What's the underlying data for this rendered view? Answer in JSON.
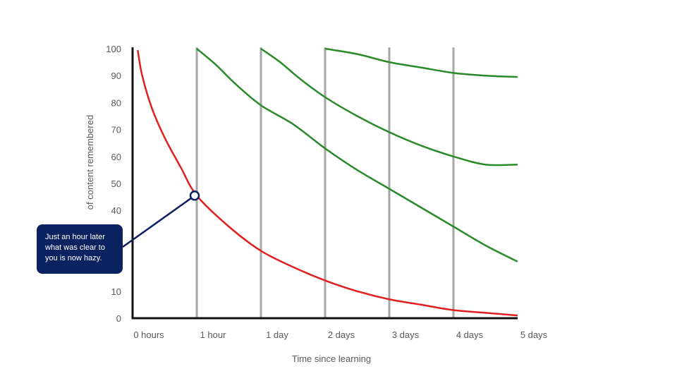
{
  "chart_data": {
    "type": "line",
    "xlabel": "Time since learning",
    "ylabel": "of content remembered",
    "ylim": [
      0,
      100
    ],
    "y_ticks": [
      "0",
      "10",
      "40",
      "50",
      "60",
      "70",
      "80",
      "90",
      "100"
    ],
    "x_ticks": [
      "0 hours",
      "1 hour",
      "1 day",
      "2 days",
      "3 days",
      "4 days",
      "5 days"
    ],
    "review_lines_at": [
      1,
      2,
      3,
      4,
      5
    ],
    "series": [
      {
        "color": "#e02020",
        "x": [
          0.08,
          0.15,
          0.3,
          0.5,
          0.75,
          1,
          1.5,
          2,
          2.5,
          3,
          3.5,
          4,
          4.5,
          5,
          5.5,
          6
        ],
        "y": [
          99.5,
          90,
          78,
          67,
          56,
          45.5,
          34,
          25,
          19,
          14,
          10,
          7,
          5,
          3,
          2,
          1
        ]
      },
      {
        "color": "#2a8a2a",
        "x": [
          1,
          1.3,
          1.6,
          2,
          2.5,
          3,
          3.5,
          4,
          4.5,
          5,
          5.5,
          6
        ],
        "y": [
          100,
          94,
          87,
          79,
          72,
          63,
          55,
          48,
          41,
          34,
          27,
          21
        ]
      },
      {
        "color": "#2a8a2a",
        "x": [
          2,
          2.3,
          2.6,
          3,
          3.5,
          4,
          4.5,
          5,
          5.5,
          6
        ],
        "y": [
          100,
          95,
          89,
          82,
          75,
          69,
          64,
          60,
          57,
          57
        ]
      },
      {
        "color": "#2a8a2a",
        "x": [
          3,
          3.5,
          4,
          4.5,
          5,
          5.5,
          6
        ],
        "y": [
          100,
          98,
          95,
          93,
          91,
          90,
          89.5
        ]
      }
    ],
    "highlight_point": {
      "x": 1,
      "y": 45.5
    },
    "annotation": {
      "lines": [
        "Just an hour later",
        "what was clear to",
        "you is now hazy."
      ]
    }
  },
  "colors": {
    "axis": "#111111",
    "gridline": "#a6a6a6",
    "callout_bg": "#0b2260"
  }
}
